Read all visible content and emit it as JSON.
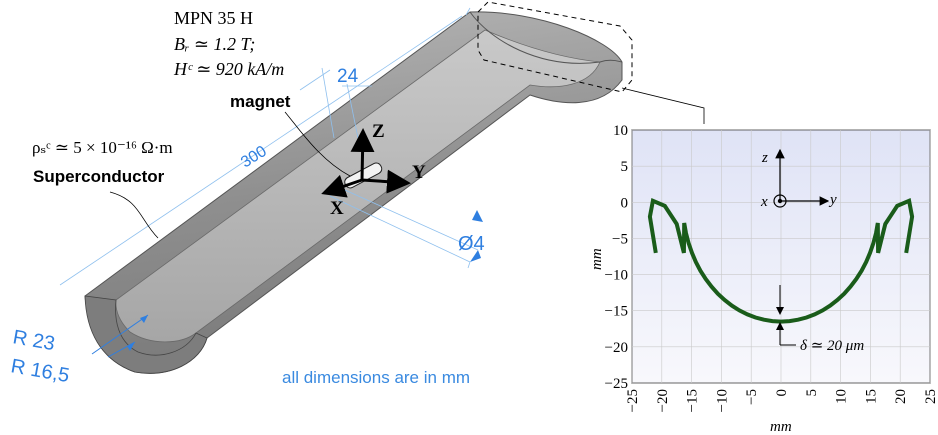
{
  "material": {
    "name": "MPN 35 H",
    "br": "Bᵣ ≃ 1.2 T;",
    "hc": "Hᶜ ≃ 920 kA/m"
  },
  "labels": {
    "magnet": "magnet",
    "superconductor": "Superconductor",
    "rho": "ρₛᶜ ≃ 5 × 10⁻¹⁶ Ω·m",
    "axis_z": "Z",
    "axis_y": "Y",
    "axis_x": "X",
    "all_dims": "all dimensions are in mm"
  },
  "dimensions": {
    "width": "24",
    "length": "300",
    "diameter": "Ø4",
    "r_outer": "R 23",
    "r_inner": "R 16,5"
  },
  "plot": {
    "ylabel": "mm",
    "xlabel": "mm",
    "xticks": [
      "−25",
      "−20",
      "−15",
      "−10",
      "−5",
      "0",
      "5",
      "10",
      "15",
      "20",
      "25"
    ],
    "yticks": [
      "10",
      "5",
      "0",
      "−5",
      "−10",
      "−15",
      "−20",
      "−25"
    ],
    "z_label": "z",
    "y_label": "y",
    "x_label": "x",
    "delta": "δ ≃ 20 μm"
  },
  "colors": {
    "curve": "#1a5c1a",
    "dimension_blue": "#2f7fe0",
    "body_gray": "#9a9a9a"
  }
}
